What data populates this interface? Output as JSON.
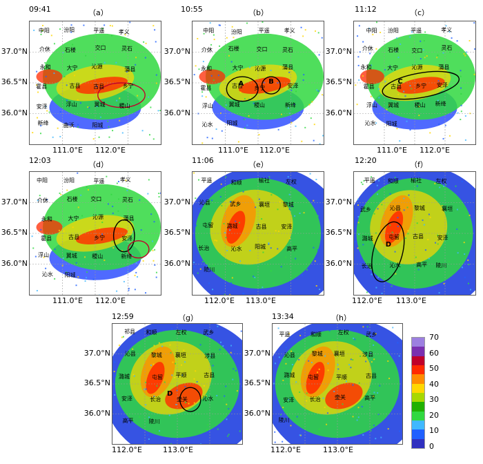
{
  "panels": [
    {
      "letter": "（a）",
      "time": "09:41",
      "y_labels": [
        "37.0°N",
        "36.5°N",
        "36.0°N"
      ],
      "x_labels": [
        "111.0°E",
        "112.0°E"
      ],
      "cities": [
        "中阳",
        "汾阳",
        "平遥",
        "孝义",
        "介休",
        "石楼",
        "交口",
        "灵石",
        "永和",
        "大宁",
        "沁源",
        "蒲县",
        "霍县",
        "古县",
        "古县",
        "乡宁",
        "安泽",
        "浮山",
        "翼城",
        "稷山",
        "新绛",
        "曲沃",
        "阳城"
      ],
      "labels": []
    },
    {
      "letter": "（b）",
      "time": "10:55",
      "y_labels": [
        "37.0°N",
        "36.5°N",
        "36.0°N"
      ],
      "x_labels": [
        "111.0°E",
        "112.0°E"
      ],
      "cities": [
        "中阳",
        "汾阳",
        "平遥",
        "孝义",
        "介休",
        "石楼",
        "交口",
        "灵石",
        "永和",
        "大宁",
        "沁源",
        "蒲县",
        "霍县",
        "古县",
        "乡宁",
        "安泽",
        "浮山",
        "翼城",
        "稷山",
        "新绛",
        "沁水",
        "阳城"
      ],
      "labels": [
        "A",
        "B"
      ]
    },
    {
      "letter": "（c）",
      "time": "11:12",
      "y_labels": [
        "37.0°N",
        "36.5°N",
        "36.0°N"
      ],
      "x_labels": [
        "111.0°E",
        "112.0°E"
      ],
      "cities": [
        "中阳",
        "汾阳",
        "平遥",
        "孝义",
        "介休",
        "石楼",
        "交口",
        "灵石",
        "永和",
        "大宁",
        "沁源",
        "蒲县",
        "霍县",
        "古县",
        "乡宁",
        "安泽",
        "浮山",
        "翼城",
        "稷山",
        "新绛",
        "沁水",
        "阳城"
      ],
      "labels": [
        "C"
      ]
    },
    {
      "letter": "（d）",
      "time": "12:03",
      "y_labels": [
        "37.0°N",
        "36.5°N",
        "36.0°N"
      ],
      "x_labels": [
        "111.0°E",
        "112.0°E"
      ],
      "cities": [
        "中阳",
        "汾阳",
        "平遥",
        "孝义",
        "介休",
        "石楼",
        "交口",
        "灵石",
        "永和",
        "大宁",
        "沁源",
        "蒲县",
        "霍县",
        "古县",
        "乡宁",
        "安泽",
        "浮山",
        "翼城",
        "稷山",
        "新绛",
        "沁水",
        "阳城"
      ],
      "labels": []
    },
    {
      "letter": "（e）",
      "time": "11:06",
      "y_labels": [
        "37.0°N",
        "36.5°N",
        "36.0°N"
      ],
      "x_labels": [
        "112.0°E",
        "113.0°E"
      ],
      "cities": [
        "平遥",
        "和顺",
        "榆社",
        "左权",
        "沁县",
        "武乡",
        "襄垣",
        "黎城",
        "屯留",
        "潞城",
        "古县",
        "安泽",
        "长治",
        "沁水",
        "阳城",
        "高平",
        "陵川"
      ],
      "labels": []
    },
    {
      "letter": "（f）",
      "time": "12:20",
      "y_labels": [
        "37.0°N",
        "36.5°N",
        "36.0°N"
      ],
      "x_labels": [
        "112.0°E",
        "113.0°E"
      ],
      "cities": [
        "平遥",
        "和顺",
        "榆社",
        "左权",
        "武乡",
        "沁县",
        "黎城",
        "襄垣",
        "潞城",
        "屯留",
        "古县",
        "安泽",
        "长治",
        "沁水",
        "高平",
        "陵川"
      ],
      "labels": [
        "D"
      ]
    },
    {
      "letter": "（g）",
      "time": "12:59",
      "y_labels": [
        "37.0°N",
        "36.5°N",
        "36.0°N"
      ],
      "x_labels": [
        "112.0°E",
        "113.0°E"
      ],
      "cities": [
        "祁县",
        "和顺",
        "左权",
        "武乡",
        "沁县",
        "黎城",
        "襄垣",
        "涉县",
        "潞城",
        "屯留",
        "平顺",
        "古县",
        "安泽",
        "长治",
        "壶关",
        "沁水",
        "高平",
        "陵川"
      ],
      "labels": [
        "D"
      ]
    },
    {
      "letter": "（h）",
      "time": "13:34",
      "y_labels": [
        "37.0°N",
        "36.5°N",
        "36.0°N"
      ],
      "x_labels": [
        "112.0°E",
        "113.0°E"
      ],
      "cities": [
        "平遥",
        "和顺",
        "左权",
        "武乡",
        "沁县",
        "黎城",
        "襄垣",
        "涉县",
        "潞城",
        "屯留",
        "平顺",
        "古县",
        "安泽",
        "长治",
        "壶关",
        "高平",
        "陵川"
      ],
      "labels": []
    }
  ],
  "legend": {
    "labels": [
      "70",
      "60",
      "50",
      "40",
      "30",
      "20",
      "10",
      "0"
    ],
    "colors": [
      "#9c7fe0",
      "#7a2fb0",
      "#c0002a",
      "#ff2a00",
      "#ff8c00",
      "#ffd700",
      "#a8d800",
      "#20b000",
      "#30d840",
      "#40b8ff",
      "#2060ff",
      "#3030c0"
    ]
  }
}
